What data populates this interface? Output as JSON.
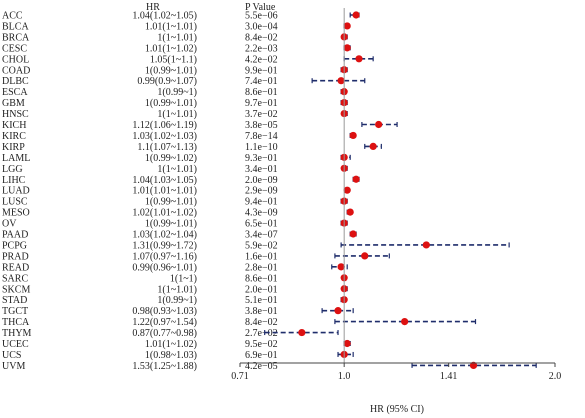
{
  "chart_data": {
    "type": "forest",
    "columns": {
      "hr": "HR",
      "p": "P Value"
    },
    "xlabel": "HR (95% CI)",
    "x_ticks": [
      "0.71",
      "1.0",
      "1.41",
      "2.0"
    ],
    "x_tick_values": [
      0.71,
      1.0,
      1.41,
      2.0
    ],
    "xlim": [
      0.71,
      2.0
    ],
    "scale": "log",
    "reference_line": 1.0,
    "colors": {
      "point": "#dd1111",
      "ci": "#1f2d6b",
      "axis": "#444444",
      "ref": "#999999",
      "text": "#222222"
    },
    "rows": [
      {
        "label": "ACC",
        "hr_text": "1.04(1.02~1.05)",
        "p": "5.5e−06",
        "hr": 1.04,
        "lo": 1.02,
        "hi": 1.05
      },
      {
        "label": "BLCA",
        "hr_text": "1.01(1~1.01)",
        "p": "3.0e−04",
        "hr": 1.01,
        "lo": 1.0,
        "hi": 1.01
      },
      {
        "label": "BRCA",
        "hr_text": "1(1~1.01)",
        "p": "8.4e−02",
        "hr": 1.0,
        "lo": 1.0,
        "hi": 1.01
      },
      {
        "label": "CESC",
        "hr_text": "1.01(1~1.02)",
        "p": "2.2e−03",
        "hr": 1.01,
        "lo": 1.0,
        "hi": 1.02
      },
      {
        "label": "CHOL",
        "hr_text": "1.05(1~1.1)",
        "p": "4.2e−02",
        "hr": 1.05,
        "lo": 1.0,
        "hi": 1.1
      },
      {
        "label": "COAD",
        "hr_text": "1(0.99~1.01)",
        "p": "9.9e−01",
        "hr": 1.0,
        "lo": 0.99,
        "hi": 1.01
      },
      {
        "label": "DLBC",
        "hr_text": "0.99(0.9~1.07)",
        "p": "7.4e−01",
        "hr": 0.99,
        "lo": 0.9,
        "hi": 1.07
      },
      {
        "label": "ESCA",
        "hr_text": "1(0.99~1)",
        "p": "8.6e−01",
        "hr": 1.0,
        "lo": 0.99,
        "hi": 1.0
      },
      {
        "label": "GBM",
        "hr_text": "1(0.99~1.01)",
        "p": "9.7e−01",
        "hr": 1.0,
        "lo": 0.99,
        "hi": 1.01
      },
      {
        "label": "HNSC",
        "hr_text": "1(1~1.01)",
        "p": "3.7e−02",
        "hr": 1.0,
        "lo": 1.0,
        "hi": 1.01
      },
      {
        "label": "KICH",
        "hr_text": "1.12(1.06~1.19)",
        "p": "3.8e−05",
        "hr": 1.12,
        "lo": 1.06,
        "hi": 1.19
      },
      {
        "label": "KIRC",
        "hr_text": "1.03(1.02~1.03)",
        "p": "7.8e−14",
        "hr": 1.03,
        "lo": 1.02,
        "hi": 1.03
      },
      {
        "label": "KIRP",
        "hr_text": "1.1(1.07~1.13)",
        "p": "1.1e−10",
        "hr": 1.1,
        "lo": 1.07,
        "hi": 1.13
      },
      {
        "label": "LAML",
        "hr_text": "1(0.99~1.02)",
        "p": "9.3e−01",
        "hr": 1.0,
        "lo": 0.99,
        "hi": 1.02
      },
      {
        "label": "LGG",
        "hr_text": "1(1~1.01)",
        "p": "3.4e−01",
        "hr": 1.0,
        "lo": 1.0,
        "hi": 1.01
      },
      {
        "label": "LIHC",
        "hr_text": "1.04(1.03~1.05)",
        "p": "2.0e−09",
        "hr": 1.04,
        "lo": 1.03,
        "hi": 1.05
      },
      {
        "label": "LUAD",
        "hr_text": "1.01(1.01~1.01)",
        "p": "2.9e−09",
        "hr": 1.01,
        "lo": 1.01,
        "hi": 1.01
      },
      {
        "label": "LUSC",
        "hr_text": "1(0.99~1.01)",
        "p": "9.4e−01",
        "hr": 1.0,
        "lo": 0.99,
        "hi": 1.01
      },
      {
        "label": "MESO",
        "hr_text": "1.02(1.01~1.02)",
        "p": "4.3e−09",
        "hr": 1.02,
        "lo": 1.01,
        "hi": 1.02
      },
      {
        "label": "OV",
        "hr_text": "1(0.99~1.01)",
        "p": "6.5e−01",
        "hr": 1.0,
        "lo": 0.99,
        "hi": 1.01
      },
      {
        "label": "PAAD",
        "hr_text": "1.03(1.02~1.04)",
        "p": "3.4e−07",
        "hr": 1.03,
        "lo": 1.02,
        "hi": 1.04
      },
      {
        "label": "PCPG",
        "hr_text": "1.31(0.99~1.72)",
        "p": "5.9e−02",
        "hr": 1.31,
        "lo": 0.99,
        "hi": 1.72
      },
      {
        "label": "PRAD",
        "hr_text": "1.07(0.97~1.16)",
        "p": "1.6e−01",
        "hr": 1.07,
        "lo": 0.97,
        "hi": 1.16
      },
      {
        "label": "READ",
        "hr_text": "0.99(0.96~1.01)",
        "p": "2.8e−01",
        "hr": 0.99,
        "lo": 0.96,
        "hi": 1.01
      },
      {
        "label": "SARC",
        "hr_text": "1(1~1)",
        "p": "8.6e−01",
        "hr": 1.0,
        "lo": 1.0,
        "hi": 1.0
      },
      {
        "label": "SKCM",
        "hr_text": "1(1~1.01)",
        "p": "2.0e−01",
        "hr": 1.0,
        "lo": 1.0,
        "hi": 1.01
      },
      {
        "label": "STAD",
        "hr_text": "1(0.99~1)",
        "p": "5.1e−01",
        "hr": 1.0,
        "lo": 0.99,
        "hi": 1.0
      },
      {
        "label": "TGCT",
        "hr_text": "0.98(0.93~1.03)",
        "p": "3.8e−01",
        "hr": 0.98,
        "lo": 0.93,
        "hi": 1.03
      },
      {
        "label": "THCA",
        "hr_text": "1.22(0.97~1.54)",
        "p": "8.4e−02",
        "hr": 1.22,
        "lo": 0.97,
        "hi": 1.54
      },
      {
        "label": "THYM",
        "hr_text": "0.87(0.77~0.98)",
        "p": "2.7e−02",
        "hr": 0.87,
        "lo": 0.77,
        "hi": 0.98
      },
      {
        "label": "UCEC",
        "hr_text": "1.01(1~1.02)",
        "p": "9.5e−02",
        "hr": 1.01,
        "lo": 1.0,
        "hi": 1.02
      },
      {
        "label": "UCS",
        "hr_text": "1(0.98~1.03)",
        "p": "6.9e−01",
        "hr": 1.0,
        "lo": 0.98,
        "hi": 1.03
      },
      {
        "label": "UVM",
        "hr_text": "1.53(1.25~1.88)",
        "p": "4.2e−05",
        "hr": 1.53,
        "lo": 1.25,
        "hi": 1.88
      }
    ]
  }
}
